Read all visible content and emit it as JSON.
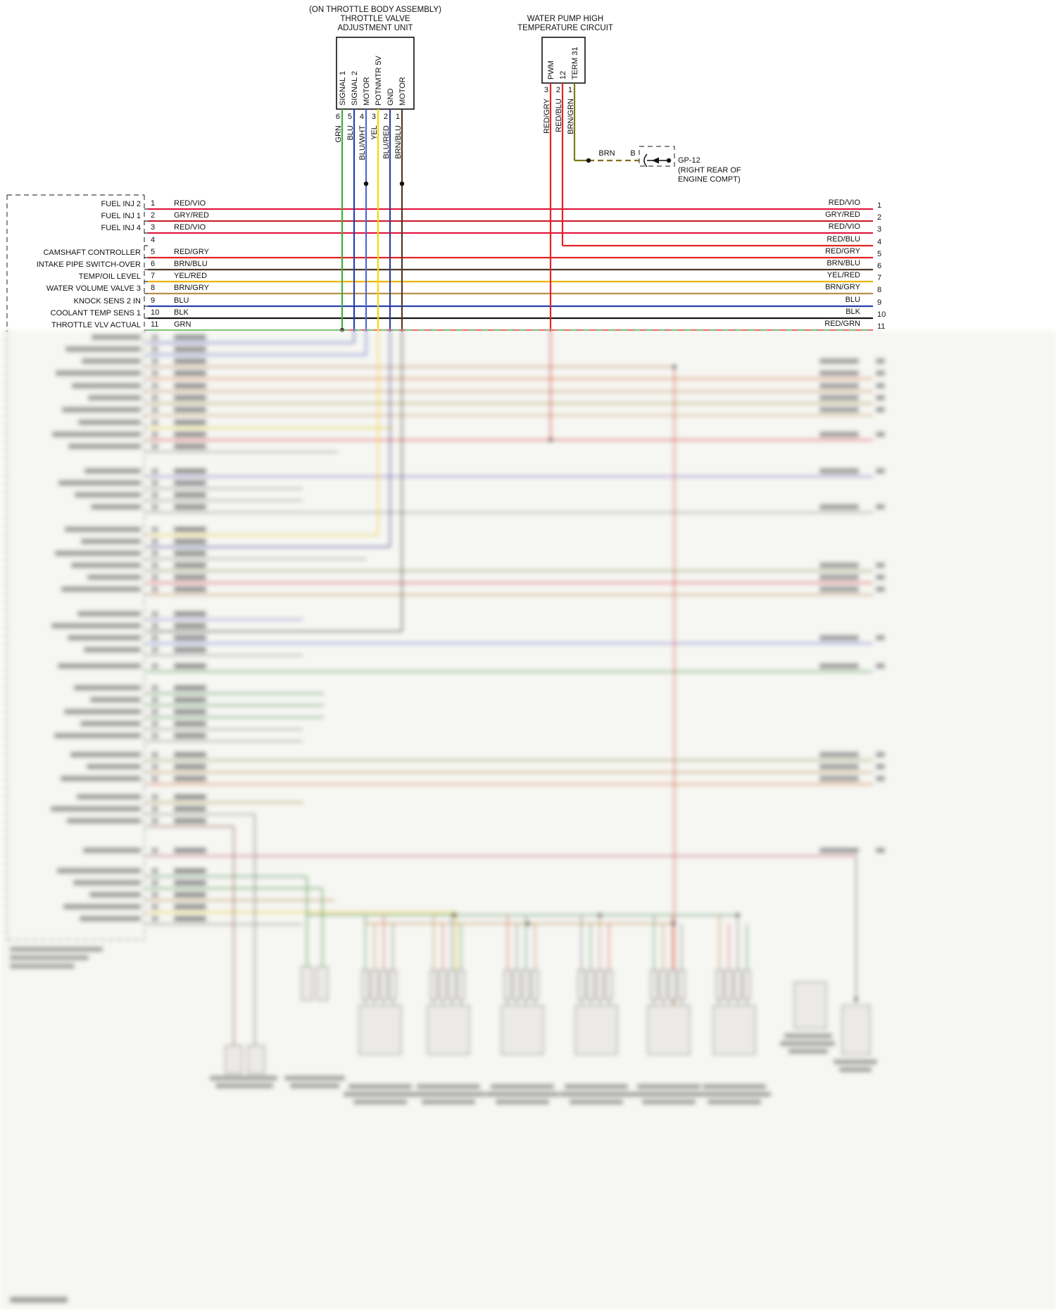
{
  "diagram": {
    "background": "#ffffff"
  },
  "throttle_unit": {
    "caption_line1": "(ON THROTTLE BODY ASSEMBLY)",
    "caption_line2": "THROTTLE VALVE",
    "caption_line3": "ADJUSTMENT UNIT",
    "pins": [
      {
        "number": "6",
        "label": "SIGNAL 1",
        "wire_color": "GRN"
      },
      {
        "number": "5",
        "label": "SIGNAL 2",
        "wire_color": "BLU"
      },
      {
        "number": "4",
        "label": "MOTOR",
        "wire_color": "BLU/WHT"
      },
      {
        "number": "3",
        "label": "POTNMTR 5V",
        "wire_color": "YEL"
      },
      {
        "number": "2",
        "label": "GND",
        "wire_color": "BLU/RED"
      },
      {
        "number": "1",
        "label": "MOTOR",
        "wire_color": "BRN/BLU"
      }
    ]
  },
  "water_pump_circuit": {
    "caption_line1": "WATER PUMP HIGH",
    "caption_line2": "TEMPERATURE CIRCUIT",
    "pins": [
      {
        "number": "3",
        "label": "PWM",
        "wire_color": "RED/GRY"
      },
      {
        "number": "2",
        "label": "12",
        "wire_color": "RED/BLU"
      },
      {
        "number": "1",
        "label": "TERM 31",
        "wire_color": "BRN/GRN"
      }
    ]
  },
  "ground_point": {
    "wire_color": "BRN",
    "pin": "B",
    "name": "GP-12",
    "location_line1": "(RIGHT REAR OF",
    "location_line2": "ENGINE COMPT)"
  },
  "ecm_connector": {
    "rows": [
      {
        "left_label": "FUEL INJ 2",
        "left_pin": "1",
        "left_wire": "RED/VIO",
        "right_wire": "RED/VIO",
        "right_pin": "1"
      },
      {
        "left_label": "FUEL INJ 1",
        "left_pin": "2",
        "left_wire": "GRY/RED",
        "right_wire": "GRY/RED",
        "right_pin": "2"
      },
      {
        "left_label": "FUEL INJ 4",
        "left_pin": "3",
        "left_wire": "RED/VIO",
        "right_wire": "RED/VIO",
        "right_pin": "3"
      },
      {
        "left_label": "",
        "left_pin": "4",
        "left_wire": "",
        "right_wire": "RED/BLU",
        "right_pin": "4"
      },
      {
        "left_label": "CAMSHAFT CONTROLLER",
        "left_pin": "5",
        "left_wire": "RED/GRY",
        "right_wire": "RED/GRY",
        "right_pin": "5"
      },
      {
        "left_label": "INTAKE PIPE SWITCH-OVER",
        "left_pin": "6",
        "left_wire": "BRN/BLU",
        "right_wire": "BRN/BLU",
        "right_pin": "6"
      },
      {
        "left_label": "TEMP/OIL LEVEL",
        "left_pin": "7",
        "left_wire": "YEL/RED",
        "right_wire": "YEL/RED",
        "right_pin": "7"
      },
      {
        "left_label": "WATER VOLUME VALVE 3",
        "left_pin": "8",
        "left_wire": "BRN/GRY",
        "right_wire": "BRN/GRY",
        "right_pin": "8"
      },
      {
        "left_label": "KNOCK SENS 2 IN",
        "left_pin": "9",
        "left_wire": "BLU",
        "right_wire": "BLU",
        "right_pin": "9"
      },
      {
        "left_label": "COOLANT TEMP SENS 1",
        "left_pin": "10",
        "left_wire": "BLK",
        "right_wire": "BLK",
        "right_pin": "10"
      },
      {
        "left_label": "THROTTLE VLV ACTUAL",
        "left_pin": "11",
        "left_wire": "GRN",
        "right_wire": "RED/GRN",
        "right_pin": "11"
      }
    ]
  },
  "wire_colors_hex": {
    "RED/VIO": "#e01840",
    "GRY/RED": "#c92332",
    "RED/BLU": "#e02525",
    "RED/GRY": "#e02525",
    "BRN/BLU": "#4f3a28",
    "YEL/RED": "#efb400",
    "BRN/GRY": "#b98f4e",
    "BLU": "#2741b0",
    "BLK": "#161616",
    "GRN": "#3fae3a",
    "RED/GRN": "#e02525",
    "BLU/WHT": "#4f6ad0",
    "BLU/RED": "#2f3f9f",
    "YEL": "#f5d800",
    "BRN/GRN": "#7d7a14",
    "BRN": "#8a6b1f"
  }
}
